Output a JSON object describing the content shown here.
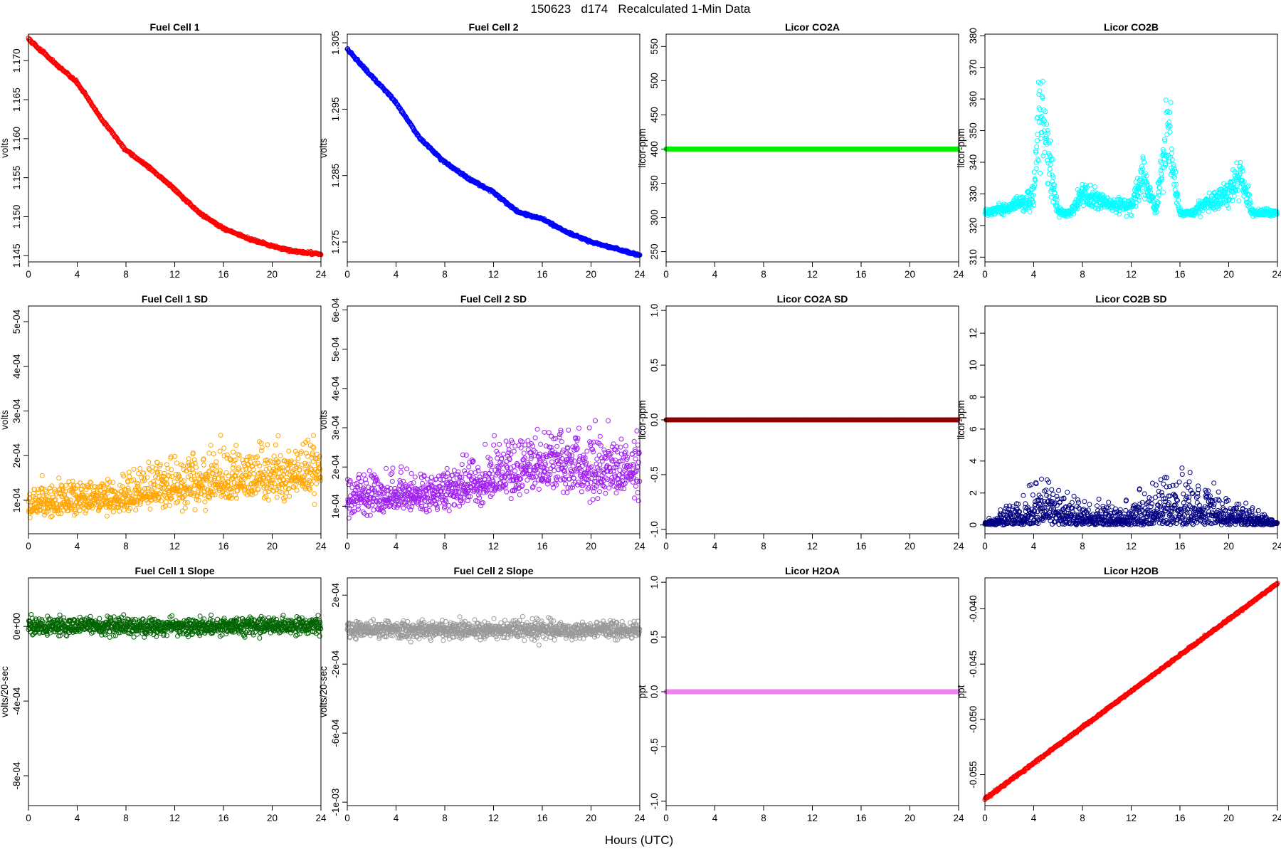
{
  "figure": {
    "title": "150623   d174   Recalculated 1-Min Data",
    "xlabel": "Hours (UTC)"
  },
  "chart_data": [
    {
      "id": "fc1",
      "type": "scatter",
      "title": "Fuel Cell 1",
      "ylabel": "volts",
      "xlim": [
        0,
        24
      ],
      "ylim": [
        1.1442,
        1.1734
      ],
      "xticks": [
        0,
        4,
        8,
        12,
        16,
        20,
        24
      ],
      "yticks": [
        "1.145",
        "1.150",
        "1.155",
        "1.160",
        "1.165",
        "1.170"
      ],
      "ytick_values": [
        1.145,
        1.15,
        1.155,
        1.16,
        1.165,
        1.17
      ],
      "color": "#ff0000",
      "style": "curve",
      "description_points": {
        "x": [
          0,
          2,
          4,
          6,
          8,
          10,
          12,
          14,
          16,
          18,
          20,
          22,
          24
        ],
        "y": [
          1.1728,
          1.1699,
          1.1672,
          1.1625,
          1.1585,
          1.1562,
          1.1535,
          1.1505,
          1.1485,
          1.1472,
          1.1462,
          1.1455,
          1.1452
        ]
      }
    },
    {
      "id": "fc2",
      "type": "scatter",
      "title": "Fuel Cell 2",
      "ylabel": "volts",
      "xlim": [
        0,
        24
      ],
      "ylim": [
        1.272,
        1.3063
      ],
      "xticks": [
        0,
        4,
        8,
        12,
        16,
        20,
        24
      ],
      "yticks": [
        "1.275",
        "1.285",
        "1.295",
        "1.305"
      ],
      "ytick_values": [
        1.275,
        1.285,
        1.295,
        1.305
      ],
      "color": "#0000ff",
      "style": "curve",
      "description_points": {
        "x": [
          0,
          2,
          4,
          6,
          8,
          10,
          12,
          14,
          16,
          18,
          20,
          22,
          24
        ],
        "y": [
          1.304,
          1.3,
          1.296,
          1.2905,
          1.287,
          1.2845,
          1.2825,
          1.2795,
          1.2785,
          1.2765,
          1.275,
          1.274,
          1.273
        ]
      }
    },
    {
      "id": "co2a",
      "type": "scatter",
      "title": "Licor CO2A",
      "ylabel": "licor-ppm",
      "xlim": [
        0,
        24
      ],
      "ylim": [
        235,
        568
      ],
      "xticks": [
        0,
        4,
        8,
        12,
        16,
        20,
        24
      ],
      "yticks": [
        "250",
        "300",
        "350",
        "400",
        "450",
        "500",
        "550"
      ],
      "ytick_values": [
        250,
        300,
        350,
        400,
        450,
        500,
        550
      ],
      "color": "#00ee00",
      "style": "flat",
      "description_points": {
        "x": [
          0,
          24
        ],
        "y": [
          400,
          400
        ]
      }
    },
    {
      "id": "co2b",
      "type": "scatter",
      "title": "Licor CO2B",
      "ylabel": "licor-ppm",
      "xlim": [
        0,
        24
      ],
      "ylim": [
        308.5,
        380.5
      ],
      "xticks": [
        0,
        4,
        8,
        12,
        16,
        20,
        24
      ],
      "yticks": [
        "310",
        "320",
        "330",
        "340",
        "350",
        "360",
        "370",
        "380"
      ],
      "ytick_values": [
        310,
        320,
        330,
        340,
        350,
        360,
        370,
        380
      ],
      "color": "#00ffff",
      "style": "co2b",
      "description_points": {
        "x": [
          0,
          1,
          2,
          3,
          4,
          4.5,
          5,
          5.5,
          6,
          7,
          8,
          9,
          10,
          11,
          12,
          13,
          14,
          15,
          16,
          17,
          18,
          19,
          20,
          21,
          22,
          23,
          24
        ],
        "y": [
          324,
          325,
          326,
          327,
          330,
          360,
          345,
          335,
          324,
          324,
          330,
          328,
          327,
          326,
          326,
          335,
          325,
          350,
          324,
          324,
          327,
          328,
          330,
          335,
          324,
          324,
          324
        ]
      }
    },
    {
      "id": "fc1sd",
      "type": "scatter",
      "title": "Fuel Cell 1 SD",
      "ylabel": "volts",
      "xlim": [
        0,
        24
      ],
      "ylim": [
        2.5e-05,
        0.000535
      ],
      "xticks": [
        0,
        4,
        8,
        12,
        16,
        20,
        24
      ],
      "yticks": [
        "1e-04",
        "2e-04",
        "3e-04",
        "4e-04",
        "5e-04"
      ],
      "ytick_values": [
        0.0001,
        0.0002,
        0.0003,
        0.0004,
        0.0005
      ],
      "color": "#ffa500",
      "style": "noisy_sd",
      "description_points": {
        "x": [
          0,
          4,
          8,
          12,
          16,
          20,
          24
        ],
        "y": [
          9e-05,
          0.0001,
          0.000105,
          0.00013,
          0.00014,
          0.00015,
          0.00016
        ]
      }
    },
    {
      "id": "fc2sd",
      "type": "scatter",
      "title": "Fuel Cell 2 SD",
      "ylabel": "volts",
      "xlim": [
        0,
        24
      ],
      "ylim": [
        3e-05,
        0.00061
      ],
      "xticks": [
        0,
        4,
        8,
        12,
        16,
        20,
        24
      ],
      "yticks": [
        "1e-04",
        "2e-04",
        "3e-04",
        "4e-04",
        "5e-04",
        "6e-04"
      ],
      "ytick_values": [
        0.0001,
        0.0002,
        0.0003,
        0.0004,
        0.0005,
        0.0006
      ],
      "color": "#a020f0",
      "style": "noisy_sd",
      "description_points": {
        "x": [
          0,
          4,
          8,
          12,
          16,
          20,
          24
        ],
        "y": [
          0.00012,
          0.00012,
          0.00013,
          0.00017,
          0.0002,
          0.00019,
          0.00019
        ]
      }
    },
    {
      "id": "co2asd",
      "type": "scatter",
      "title": "Licor CO2A SD",
      "ylabel": "licor-ppm",
      "xlim": [
        0,
        24
      ],
      "ylim": [
        -1.04,
        1.04
      ],
      "xticks": [
        0,
        4,
        8,
        12,
        16,
        20,
        24
      ],
      "yticks": [
        "-1.0",
        "-0.5",
        "0.0",
        "0.5",
        "1.0"
      ],
      "ytick_values": [
        -1,
        -0.5,
        0,
        0.5,
        1
      ],
      "color": "#8b0000",
      "style": "flat",
      "description_points": {
        "x": [
          0,
          24
        ],
        "y": [
          0,
          0
        ]
      }
    },
    {
      "id": "co2bsd",
      "type": "scatter",
      "title": "Licor CO2B SD",
      "ylabel": "licor-ppm",
      "xlim": [
        0,
        24
      ],
      "ylim": [
        -0.55,
        13.7
      ],
      "xticks": [
        0,
        4,
        8,
        12,
        16,
        20,
        24
      ],
      "yticks": [
        "0",
        "2",
        "4",
        "6",
        "8",
        "10",
        "12"
      ],
      "ytick_values": [
        0,
        2,
        4,
        6,
        8,
        10,
        12
      ],
      "color": "#000080",
      "style": "co2bsd",
      "description_points": {
        "x": [
          0,
          4,
          5,
          8,
          12,
          15,
          20,
          24
        ],
        "y": [
          0.1,
          1.5,
          2.0,
          0.8,
          1.0,
          2.5,
          1.2,
          0.1
        ]
      }
    },
    {
      "id": "fc1slope",
      "type": "scatter",
      "title": "Fuel Cell 1 Slope",
      "ylabel": "volts/20-sec",
      "xlim": [
        0,
        24
      ],
      "ylim": [
        -0.00096,
        0.00026
      ],
      "xticks": [
        0,
        4,
        8,
        12,
        16,
        20,
        24
      ],
      "yticks": [
        "-8e-04",
        "-4e-04",
        "0e+00"
      ],
      "ytick_values": [
        -0.0008,
        -0.0004,
        0
      ],
      "color": "#006400",
      "style": "noise_zero",
      "description_points": {
        "x": [
          0,
          24
        ],
        "y": [
          0,
          0
        ]
      }
    },
    {
      "id": "fc2slope",
      "type": "scatter",
      "title": "Fuel Cell 2 Slope",
      "ylabel": "volts/20-sec",
      "xlim": [
        0,
        24
      ],
      "ylim": [
        -0.00102,
        0.0003
      ],
      "xticks": [
        0,
        4,
        8,
        12,
        16,
        20,
        24
      ],
      "yticks": [
        "-1e-03",
        "-6e-04",
        "-2e-04",
        "2e-04"
      ],
      "ytick_values": [
        -0.001,
        -0.0006,
        -0.0002,
        0.0002
      ],
      "color": "#999999",
      "style": "noise_zero",
      "description_points": {
        "x": [
          0,
          24
        ],
        "y": [
          0,
          0
        ]
      }
    },
    {
      "id": "h2oa",
      "type": "scatter",
      "title": "Licor H2OA",
      "ylabel": "ppt",
      "xlim": [
        0,
        24
      ],
      "ylim": [
        -1.04,
        1.04
      ],
      "xticks": [
        0,
        4,
        8,
        12,
        16,
        20,
        24
      ],
      "yticks": [
        "-1.0",
        "-0.5",
        "0.0",
        "0.5",
        "1.0"
      ],
      "ytick_values": [
        -1,
        -0.5,
        0,
        0.5,
        1
      ],
      "color": "#ee82ee",
      "style": "flat",
      "description_points": {
        "x": [
          0,
          24
        ],
        "y": [
          0,
          0
        ]
      }
    },
    {
      "id": "h2ob",
      "type": "scatter",
      "title": "Licor H2OB",
      "ylabel": "ppt",
      "xlim": [
        0,
        24
      ],
      "ylim": [
        -0.0578,
        -0.0372
      ],
      "xticks": [
        0,
        4,
        8,
        12,
        16,
        20,
        24
      ],
      "yticks": [
        "-0.055",
        "-0.050",
        "-0.045",
        "-0.040"
      ],
      "ytick_values": [
        -0.055,
        -0.05,
        -0.045,
        -0.04
      ],
      "color": "#ff0000",
      "style": "linear",
      "description_points": {
        "x": [
          0,
          24
        ],
        "y": [
          -0.0572,
          -0.0377
        ]
      }
    }
  ]
}
